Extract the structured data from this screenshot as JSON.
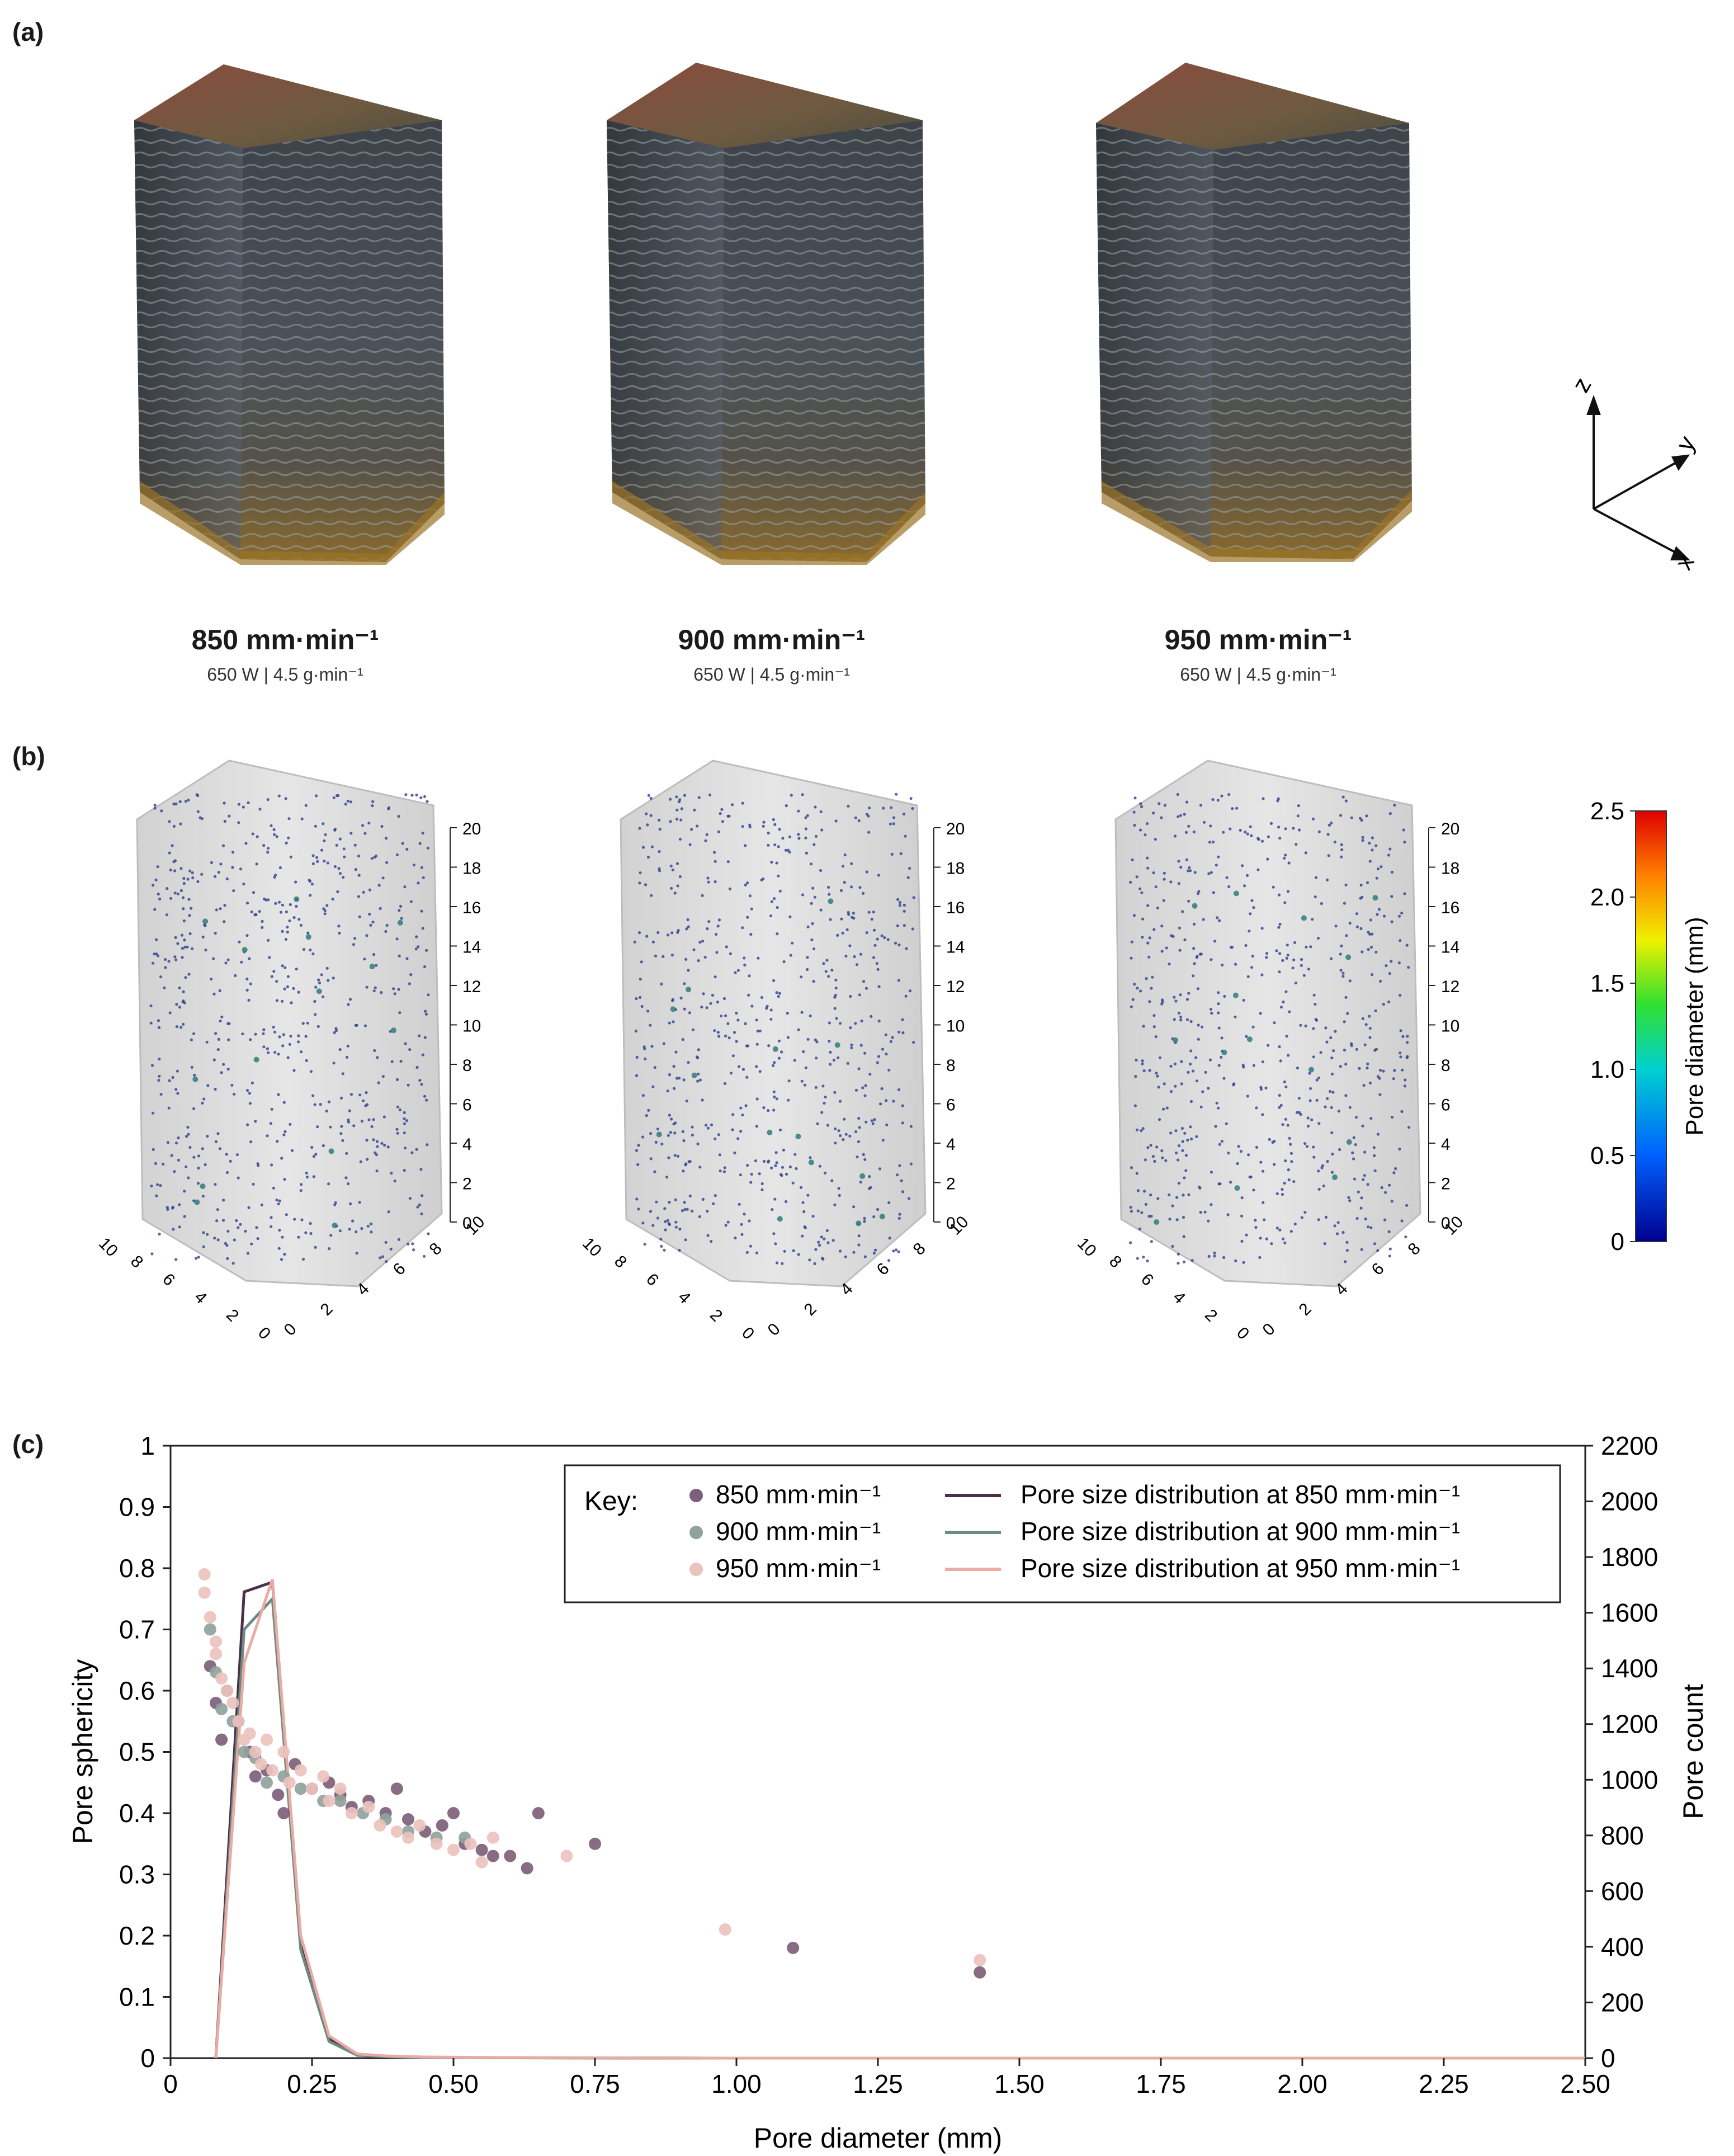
{
  "figure": {
    "panel_a_label": "(a)",
    "panel_b_label": "(b)",
    "panel_c_label": "(c)"
  },
  "samples": [
    {
      "speed": "850 mm·min⁻¹",
      "params": "650 W | 4.5 g·min⁻¹"
    },
    {
      "speed": "900 mm·min⁻¹",
      "params": "650 W | 4.5 g·min⁻¹"
    },
    {
      "speed": "950 mm·min⁻¹",
      "params": "650 W | 4.5 g·min⁻¹"
    }
  ],
  "axes_triad": {
    "z": "z",
    "y": "y",
    "x": "x"
  },
  "ct_axis_ticks": {
    "vertical": [
      "0",
      "2",
      "4",
      "6",
      "8",
      "10",
      "12",
      "14",
      "16",
      "18",
      "20"
    ],
    "left_base": [
      "10",
      "8",
      "6",
      "4",
      "2",
      "0"
    ],
    "right_base": [
      "0",
      "2",
      "4",
      "6",
      "8",
      "10"
    ]
  },
  "colorbar": {
    "label": "Pore diameter (mm)",
    "ticks": [
      "0",
      "0.5",
      "1.0",
      "1.5",
      "2.0",
      "2.5"
    ],
    "colors": [
      "#00008f",
      "#0060ff",
      "#00d0d0",
      "#30e030",
      "#f0f000",
      "#ff8000",
      "#e00000"
    ]
  },
  "chart_data": {
    "type": "scatter",
    "xlabel": "Pore diameter (mm)",
    "ylabel": "Pore sphericity",
    "y2label": "Pore count",
    "xlim": [
      0,
      2.5
    ],
    "ylim": [
      0,
      1
    ],
    "y2lim": [
      0,
      2200
    ],
    "x_ticks": [
      "0",
      "0.25",
      "0.50",
      "0.75",
      "1.00",
      "1.25",
      "1.50",
      "1.75",
      "2.00",
      "2.25",
      "2.50"
    ],
    "y_ticks": [
      "0",
      "0.1",
      "0.2",
      "0.3",
      "0.4",
      "0.5",
      "0.6",
      "0.7",
      "0.8",
      "0.9",
      "1"
    ],
    "y2_ticks": [
      "0",
      "200",
      "400",
      "600",
      "800",
      "1000",
      "1200",
      "1400",
      "1600",
      "1800",
      "2000",
      "2200"
    ],
    "legend": {
      "key_label": "Key:",
      "position": "top-right",
      "items": [
        "850 mm·min⁻¹",
        "900 mm·min⁻¹",
        "950 mm·min⁻¹",
        "Pore size distribution at 850 mm·min⁻¹",
        "Pore size distribution at 900 mm·min⁻¹",
        "Pore size distribution at 950 mm·min⁻¹"
      ]
    },
    "scatter_series": [
      {
        "name": "850 mm·min⁻¹",
        "color": "#7d5f7a",
        "points": [
          [
            0.07,
            0.64
          ],
          [
            0.08,
            0.58
          ],
          [
            0.09,
            0.52
          ],
          [
            0.1,
            0.6
          ],
          [
            0.12,
            0.55
          ],
          [
            0.14,
            0.5
          ],
          [
            0.15,
            0.46
          ],
          [
            0.17,
            0.47
          ],
          [
            0.19,
            0.43
          ],
          [
            0.2,
            0.4
          ],
          [
            0.22,
            0.48
          ],
          [
            0.25,
            0.44
          ],
          [
            0.28,
            0.45
          ],
          [
            0.3,
            0.43
          ],
          [
            0.32,
            0.41
          ],
          [
            0.35,
            0.42
          ],
          [
            0.38,
            0.4
          ],
          [
            0.4,
            0.44
          ],
          [
            0.42,
            0.39
          ],
          [
            0.45,
            0.37
          ],
          [
            0.48,
            0.38
          ],
          [
            0.5,
            0.4
          ],
          [
            0.52,
            0.35
          ],
          [
            0.55,
            0.34
          ],
          [
            0.57,
            0.33
          ],
          [
            0.6,
            0.33
          ],
          [
            0.63,
            0.31
          ],
          [
            0.65,
            0.4
          ],
          [
            0.75,
            0.35
          ],
          [
            1.1,
            0.18
          ],
          [
            1.43,
            0.14
          ]
        ]
      },
      {
        "name": "900 mm·min⁻¹",
        "color": "#8fa39b",
        "points": [
          [
            0.07,
            0.7
          ],
          [
            0.08,
            0.63
          ],
          [
            0.09,
            0.57
          ],
          [
            0.11,
            0.55
          ],
          [
            0.13,
            0.5
          ],
          [
            0.15,
            0.49
          ],
          [
            0.17,
            0.45
          ],
          [
            0.2,
            0.46
          ],
          [
            0.23,
            0.44
          ],
          [
            0.27,
            0.42
          ],
          [
            0.3,
            0.42
          ],
          [
            0.34,
            0.4
          ],
          [
            0.38,
            0.39
          ],
          [
            0.42,
            0.37
          ],
          [
            0.47,
            0.36
          ],
          [
            0.52,
            0.36
          ]
        ]
      },
      {
        "name": "950 mm·min⁻¹",
        "color": "#ecc2bd",
        "points": [
          [
            0.06,
            0.79
          ],
          [
            0.06,
            0.76
          ],
          [
            0.07,
            0.72
          ],
          [
            0.08,
            0.68
          ],
          [
            0.08,
            0.66
          ],
          [
            0.09,
            0.62
          ],
          [
            0.1,
            0.6
          ],
          [
            0.11,
            0.58
          ],
          [
            0.12,
            0.55
          ],
          [
            0.13,
            0.52
          ],
          [
            0.14,
            0.53
          ],
          [
            0.15,
            0.5
          ],
          [
            0.16,
            0.48
          ],
          [
            0.17,
            0.52
          ],
          [
            0.18,
            0.47
          ],
          [
            0.2,
            0.5
          ],
          [
            0.21,
            0.45
          ],
          [
            0.23,
            0.47
          ],
          [
            0.25,
            0.44
          ],
          [
            0.27,
            0.46
          ],
          [
            0.28,
            0.42
          ],
          [
            0.3,
            0.44
          ],
          [
            0.32,
            0.4
          ],
          [
            0.35,
            0.41
          ],
          [
            0.37,
            0.38
          ],
          [
            0.4,
            0.37
          ],
          [
            0.42,
            0.36
          ],
          [
            0.44,
            0.38
          ],
          [
            0.47,
            0.35
          ],
          [
            0.5,
            0.34
          ],
          [
            0.53,
            0.35
          ],
          [
            0.55,
            0.32
          ],
          [
            0.57,
            0.36
          ],
          [
            0.7,
            0.33
          ],
          [
            0.98,
            0.21
          ],
          [
            1.43,
            0.16
          ]
        ]
      }
    ],
    "line_series": [
      {
        "name": "Pore size distribution at 850 mm·min⁻¹",
        "color": "#4a3048",
        "points": [
          [
            0.08,
            0
          ],
          [
            0.13,
            1675
          ],
          [
            0.18,
            1710
          ],
          [
            0.23,
            420
          ],
          [
            0.28,
            70
          ],
          [
            0.33,
            12
          ],
          [
            0.38,
            6
          ],
          [
            0.45,
            3
          ],
          [
            0.6,
            1
          ],
          [
            1.0,
            0
          ],
          [
            2.5,
            0
          ]
        ]
      },
      {
        "name": "Pore size distribution at 900 mm·min⁻¹",
        "color": "#6f8a83",
        "points": [
          [
            0.08,
            0
          ],
          [
            0.13,
            1540
          ],
          [
            0.18,
            1650
          ],
          [
            0.23,
            390
          ],
          [
            0.28,
            60
          ],
          [
            0.33,
            10
          ],
          [
            0.38,
            5
          ],
          [
            0.45,
            2
          ],
          [
            0.6,
            1
          ],
          [
            1.0,
            0
          ],
          [
            2.5,
            0
          ]
        ]
      },
      {
        "name": "Pore size distribution at 950 mm·min⁻¹",
        "color": "#e9aba3",
        "points": [
          [
            0.08,
            0
          ],
          [
            0.13,
            1420
          ],
          [
            0.18,
            1720
          ],
          [
            0.23,
            440
          ],
          [
            0.28,
            80
          ],
          [
            0.33,
            15
          ],
          [
            0.38,
            8
          ],
          [
            0.45,
            4
          ],
          [
            0.6,
            2
          ],
          [
            1.0,
            0
          ],
          [
            2.5,
            0
          ]
        ]
      }
    ]
  }
}
